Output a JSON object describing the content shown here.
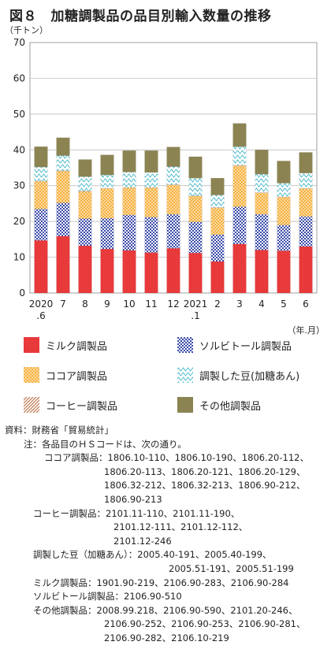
{
  "title": "図８　加糖調製品の品目別輸入数量の推移",
  "y_unit": "（千トン）",
  "x_unit": "（年.月）",
  "colors": {
    "milk": "#e8393b",
    "sorbitol": "#3a4aa8",
    "cocoa": "#f5a623",
    "beans": "#3cb4c8",
    "coffee": "#b86a3c",
    "other": "#8b8452"
  },
  "chart_data": {
    "type": "bar",
    "stacked": true,
    "categories": [
      "2020\n.6",
      "7",
      "8",
      "9",
      "10",
      "11",
      "12",
      "2021\n.1",
      "2",
      "3",
      "4",
      "5",
      "6"
    ],
    "ylim": [
      0,
      70
    ],
    "yticks": [
      0,
      10,
      20,
      30,
      40,
      50,
      60,
      70
    ],
    "grid": true,
    "series": [
      {
        "name": "ミルク調製品",
        "key": "milk",
        "values": [
          14.7,
          15.9,
          13.2,
          12.3,
          11.9,
          11.3,
          12.5,
          11.2,
          8.8,
          13.7,
          12.0,
          11.8,
          13.0
        ]
      },
      {
        "name": "ソルビトール調製品",
        "key": "sorbitol",
        "values": [
          8.8,
          9.3,
          7.6,
          8.6,
          9.9,
          9.9,
          9.5,
          8.7,
          7.5,
          10.4,
          10.0,
          7.2,
          8.4
        ]
      },
      {
        "name": "ココア調製品",
        "key": "cocoa",
        "values": [
          7.7,
          8.9,
          7.6,
          8.3,
          7.6,
          8.2,
          8.2,
          7.2,
          7.5,
          11.5,
          6.0,
          7.8,
          7.8
        ]
      },
      {
        "name": "コーヒー調製品",
        "key": "coffee",
        "values": [
          0.1,
          0.1,
          0.1,
          0.1,
          0.1,
          0.1,
          0.1,
          0.1,
          0.1,
          0.1,
          0.1,
          0.1,
          0.1
        ]
      },
      {
        "name": "調製した豆(加糖あん)",
        "key": "beans",
        "values": [
          3.9,
          4.2,
          4.0,
          3.7,
          4.3,
          4.2,
          5.0,
          4.9,
          3.5,
          5.2,
          5.1,
          3.8,
          4.2
        ]
      },
      {
        "name": "その他調製品",
        "key": "other",
        "values": [
          5.7,
          5.0,
          4.8,
          5.6,
          6.0,
          6.1,
          5.5,
          6.0,
          4.7,
          6.5,
          6.8,
          6.2,
          5.8
        ]
      }
    ]
  },
  "legend": {
    "milk": "ミルク調製品",
    "sorbitol": "ソルビトール調製品",
    "cocoa": "ココア調製品",
    "beans": "調製した豆(加糖あん)",
    "coffee": "コーヒー調製品",
    "other": "その他調製品"
  },
  "notes": {
    "source": "資料：財務省「貿易統計」",
    "note_head": "注：各品目のＨＳコードは、次の通り。",
    "cocoa_1": "ココア調製品：1806.10-110、1806.10-190、1806.20-112、",
    "cocoa_2": "1806.20-113、1806.20-121、1806.20-129、",
    "cocoa_3": "1806.32-212、1806.32-213、1806.90-212、",
    "cocoa_4": "1806.90-213",
    "coffee_1": "コーヒー調製品：2101.11-110、2101.11-190、",
    "coffee_2": "2101.12-111、2101.12-112、",
    "coffee_3": "2101.12-246",
    "beans_1": "調製した豆（加糖あん）：2005.40-191、2005.40-199、",
    "beans_2": "2005.51-191、2005.51-199",
    "milk_1": "ミルク調製品：1901.90-219、2106.90-283、2106.90-284",
    "sorbitol_1": "ソルビトール調製品：2106.90-510",
    "other_1": "その他調製品：2008.99.218、2106.90-590、2101.20-246、",
    "other_2": "2106.90-252、2106.90-253、2106.90-281、",
    "other_3": "2106.90-282、2106.10-219"
  }
}
